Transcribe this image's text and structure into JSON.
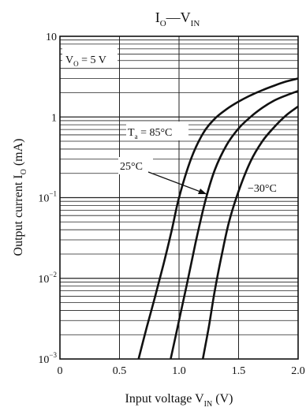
{
  "chart_data": {
    "type": "line",
    "title": {
      "main": "I",
      "main_sub": "O",
      "dash": "—",
      "second": "V",
      "second_sub": "IN"
    },
    "xlabel": {
      "text": "Input voltage  V",
      "sub": "IN",
      "unit": "  (V)"
    },
    "ylabel": {
      "text": "Output current  I",
      "sub": "O",
      "unit": "  (mA)"
    },
    "x_scale": "linear",
    "y_scale": "log",
    "xlim": [
      0,
      2.0
    ],
    "ylim": [
      0.001,
      10
    ],
    "x_ticks": [
      "0",
      "0.5",
      "1.0",
      "1.5",
      "2.0"
    ],
    "y_ticks": [
      {
        "base": "10",
        "exp": "",
        "value": 10
      },
      {
        "base": "1",
        "exp": "",
        "value": 1
      },
      {
        "base": "10",
        "exp": "−1",
        "value": 0.1
      },
      {
        "base": "10",
        "exp": "−2",
        "value": 0.01
      },
      {
        "base": "10",
        "exp": "−3",
        "value": 0.001
      }
    ],
    "grid": true,
    "condition": {
      "text": "V",
      "sub": "O",
      "rest": " = 5 V"
    },
    "annotations": [
      {
        "text": "T",
        "sub": "a",
        "rest": " = 85°C"
      },
      {
        "text": "25°C",
        "sub": "",
        "rest": ""
      },
      {
        "text": "−30°C",
        "sub": "",
        "rest": ""
      }
    ],
    "series": [
      {
        "name": "Ta = 85°C",
        "x": [
          0.66,
          0.73,
          0.8,
          0.87,
          0.94,
          1.0,
          1.1,
          1.2,
          1.3,
          1.4,
          1.5,
          1.6,
          1.7,
          1.8,
          1.9,
          2.0
        ],
        "y": [
          0.001,
          0.0025,
          0.006,
          0.015,
          0.04,
          0.1,
          0.3,
          0.62,
          0.95,
          1.25,
          1.55,
          1.85,
          2.15,
          2.45,
          2.75,
          3.0
        ]
      },
      {
        "name": "25°C",
        "x": [
          0.93,
          1.0,
          1.07,
          1.14,
          1.22,
          1.3,
          1.4,
          1.5,
          1.6,
          1.7,
          1.8,
          1.9,
          2.0
        ],
        "y": [
          0.001,
          0.003,
          0.009,
          0.028,
          0.09,
          0.22,
          0.45,
          0.72,
          1.0,
          1.3,
          1.6,
          1.85,
          2.1
        ]
      },
      {
        "name": "−30°C",
        "x": [
          1.2,
          1.25,
          1.3,
          1.36,
          1.42,
          1.5,
          1.6,
          1.7,
          1.8,
          1.9,
          2.0
        ],
        "y": [
          0.001,
          0.0025,
          0.007,
          0.02,
          0.05,
          0.12,
          0.28,
          0.5,
          0.75,
          1.05,
          1.35
        ]
      }
    ]
  }
}
